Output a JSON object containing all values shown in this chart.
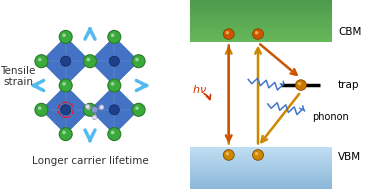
{
  "bg_color": "#ffffff",
  "perovskite_blue": "#4472c4",
  "perovskite_dark_blue": "#1e3f8a",
  "halide_green": "#2a7a2a",
  "halide_green_light": "#3aaa3a",
  "arrow_blue": "#55bbee",
  "carrier_dark": "#cc5500",
  "carrier_light": "#cc8800",
  "trap_color": "#111111",
  "phonon_blue": "#4477cc",
  "text_color": "#333333",
  "title_left": "Longer carrier lifetime",
  "label_tensile": "Tensile\nstrain",
  "label_cbm": "CBM",
  "label_vbm": "VBM",
  "label_trap": "trap",
  "label_phonon": "phonon",
  "cbm_top": "#5aaa5a",
  "cbm_bottom": "#a8d8a8",
  "vbm_top": "#9ac8e8",
  "vbm_bottom": "#c8e4f4",
  "arrow_orange_up": "#cc8800",
  "arrow_orange_dn": "#cc5500"
}
